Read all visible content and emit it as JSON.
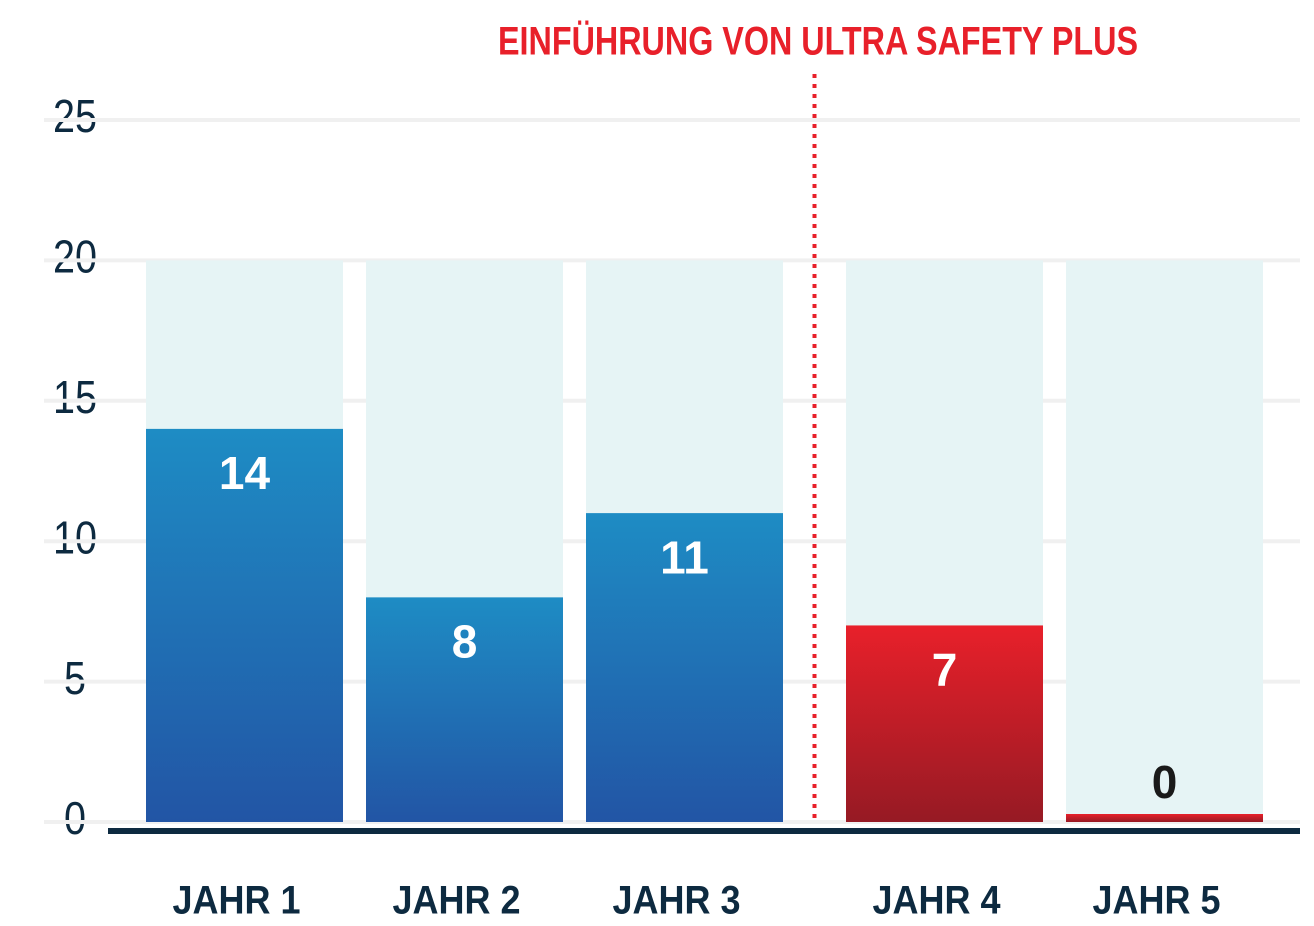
{
  "chart_data": {
    "type": "bar",
    "annotation": "EINFÜHRUNG VON ULTRA SAFETY PLUS",
    "categories": [
      "JAHR 1",
      "JAHR 2",
      "JAHR 3",
      "JAHR 4",
      "JAHR 5"
    ],
    "values": [
      14,
      8,
      11,
      7,
      0
    ],
    "colors": [
      [
        "#1e8cc4",
        "#2255a5"
      ],
      [
        "#1e8cc4",
        "#2255a5"
      ],
      [
        "#1e8cc4",
        "#2255a5"
      ],
      [
        "#e8202a",
        "#961a24"
      ],
      [
        "#e8202a",
        "#961a24"
      ]
    ],
    "backdrop_value": 20,
    "backdrop_color": "#e6f4f5",
    "annotation_color": "#e8202a",
    "ylim": [
      0,
      25
    ],
    "yticks": [
      0,
      5,
      10,
      15,
      20,
      25
    ],
    "grid": true
  }
}
